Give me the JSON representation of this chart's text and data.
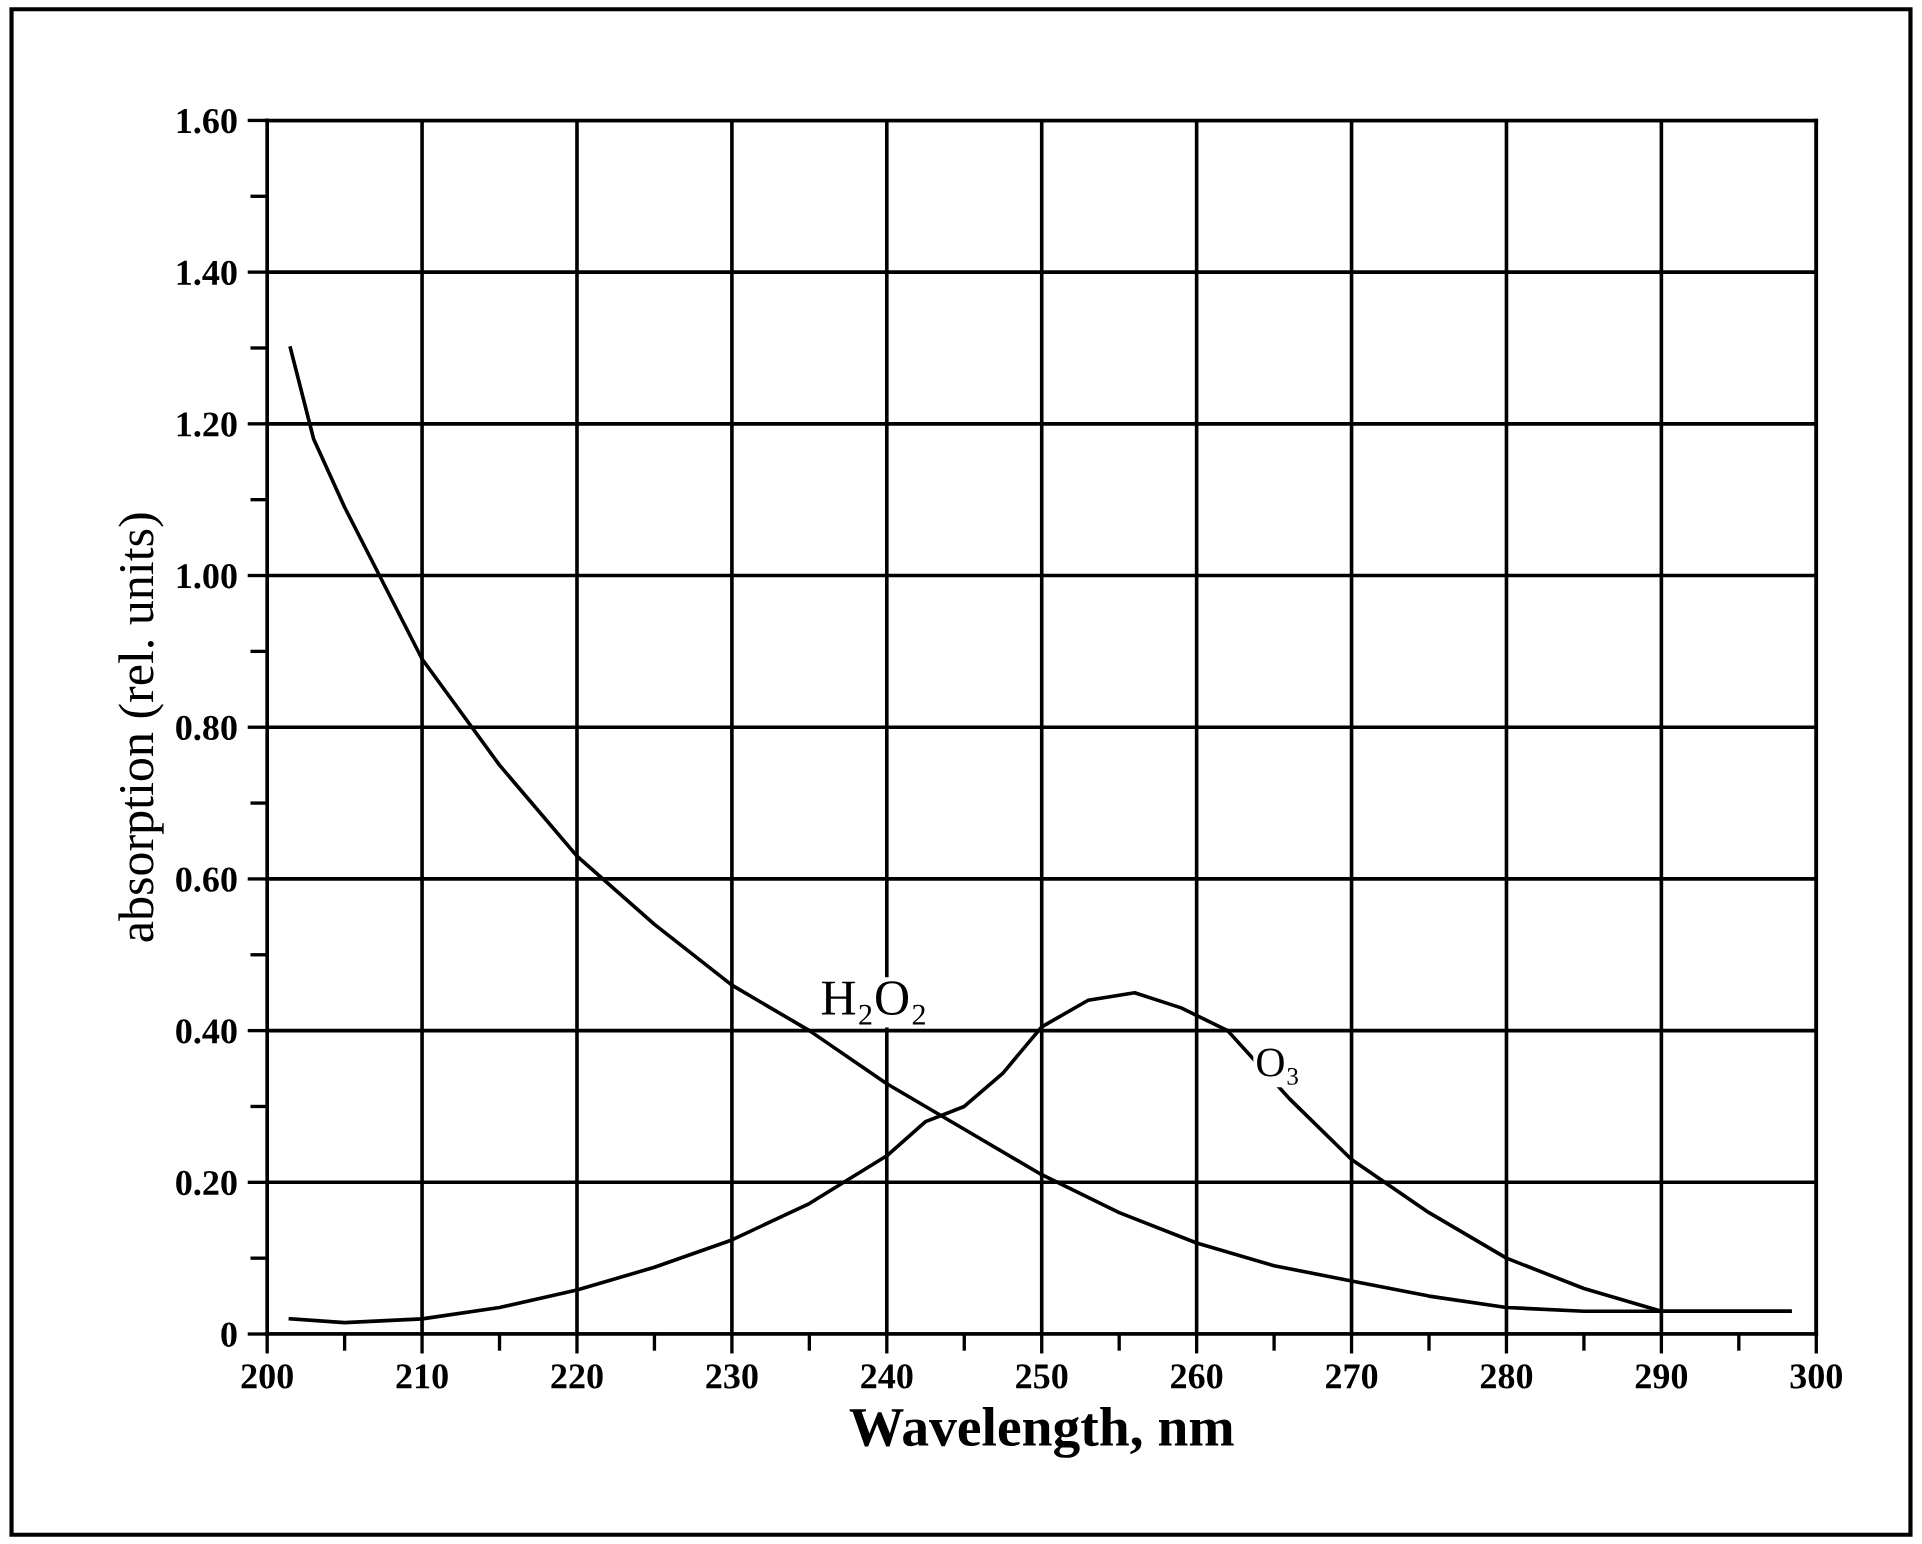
{
  "chart_data": {
    "type": "line",
    "xlabel": "Wavelength, nm",
    "ylabel": "absorption (rel. units)",
    "xlim": [
      200,
      300
    ],
    "xticks": [
      200,
      210,
      220,
      230,
      240,
      250,
      260,
      270,
      280,
      290,
      300
    ],
    "ylim": [
      0,
      1.6
    ],
    "yticks": [
      {
        "value": 0,
        "label": "0"
      },
      {
        "value": 0.2,
        "label": "0.20"
      },
      {
        "value": 0.4,
        "label": "0.40"
      },
      {
        "value": 0.6,
        "label": "0.60"
      },
      {
        "value": 0.8,
        "label": "0.80"
      },
      {
        "value": 1.0,
        "label": "1.00"
      },
      {
        "value": 1.2,
        "label": "1.20"
      },
      {
        "value": 1.4,
        "label": "1.40"
      },
      {
        "value": 1.6,
        "label": "1.60"
      }
    ],
    "grid": true,
    "marker": "none",
    "line_style": "solid",
    "series": [
      {
        "name": "H₂O₂",
        "color": "#000000",
        "x": [
          201.5,
          203,
          205,
          210,
          215,
          220,
          225,
          230,
          235,
          240,
          245,
          250,
          255,
          260,
          265,
          270,
          275,
          280,
          285,
          290,
          298.3
        ],
        "values": [
          1.3,
          1.18,
          1.09,
          0.89,
          0.75,
          0.63,
          0.54,
          0.46,
          0.4,
          0.33,
          0.27,
          0.21,
          0.16,
          0.12,
          0.09,
          0.07,
          0.05,
          0.035,
          0.03,
          0.03,
          0.03
        ]
      },
      {
        "name": "O₃",
        "color": "#000000",
        "x": [
          201.5,
          205,
          210,
          215,
          220,
          225,
          230,
          235,
          240,
          242.5,
          245,
          247.5,
          250,
          253,
          256,
          259,
          262,
          266,
          270,
          275,
          280,
          285,
          290,
          298.3
        ],
        "values": [
          0.02,
          0.015,
          0.02,
          0.035,
          0.058,
          0.088,
          0.124,
          0.172,
          0.235,
          0.28,
          0.3,
          0.344,
          0.405,
          0.44,
          0.45,
          0.43,
          0.4,
          0.31,
          0.23,
          0.16,
          0.1,
          0.06,
          0.03,
          0.03
        ]
      }
    ]
  }
}
